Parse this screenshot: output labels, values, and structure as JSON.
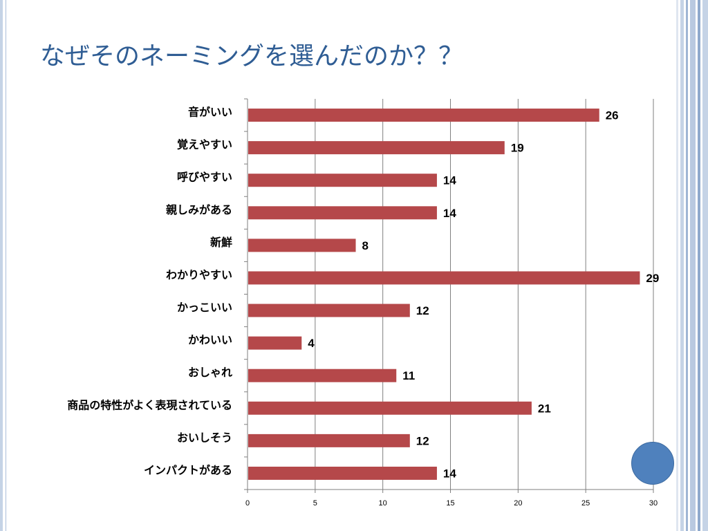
{
  "slide": {
    "title": "なぜそのネーミングを選んだのか？？"
  },
  "colors": {
    "bar": "#b5484a",
    "title": "#2f5d94",
    "frame": "#c5d3e6",
    "circle": "#4f81bd"
  },
  "chart_data": {
    "type": "bar",
    "orientation": "horizontal",
    "categories": [
      "音がいい",
      "覚えやすい",
      "呼びやすい",
      "親しみがある",
      "新鮮",
      "わかりやすい",
      "かっこいい",
      "かわいい",
      "おしゃれ",
      "商品の特性がよく表現されている",
      "おいしそう",
      "インパクトがある"
    ],
    "values": [
      26,
      19,
      14,
      14,
      8,
      29,
      12,
      4,
      11,
      21,
      12,
      14
    ],
    "xlim": [
      0,
      30
    ],
    "xticks": [
      0,
      5,
      10,
      15,
      20,
      25,
      30
    ],
    "grid": true,
    "legend": "none",
    "data_labels": true
  }
}
